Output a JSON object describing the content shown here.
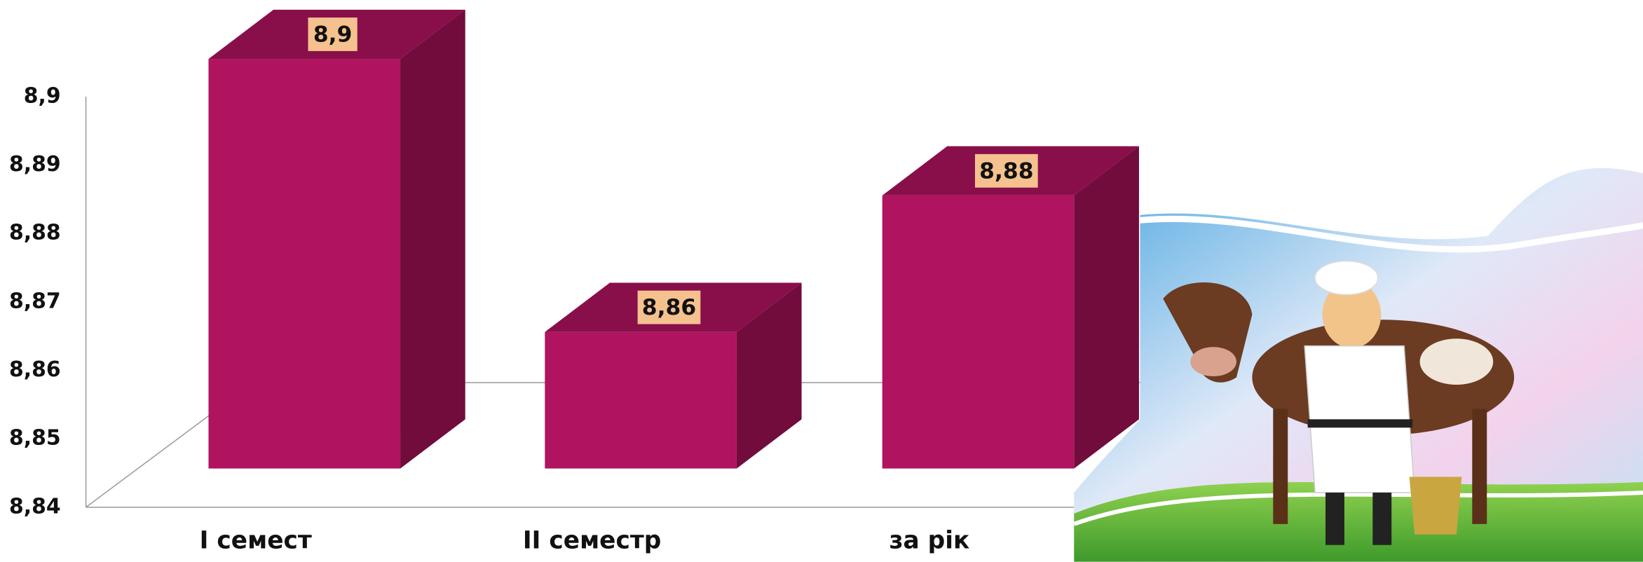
{
  "chart_data": {
    "type": "bar3d",
    "categories": [
      "І семест",
      "ІІ семестр",
      "за рік"
    ],
    "values": [
      8.9,
      8.86,
      8.88
    ],
    "value_labels": [
      "8,9",
      "8,86",
      "8,88"
    ],
    "color": "#b0135f",
    "ylim": [
      8.84,
      8.9
    ],
    "yticks": [
      {
        "value": 8.84,
        "label": "8,84"
      },
      {
        "value": 8.85,
        "label": "8,85"
      },
      {
        "value": 8.86,
        "label": "8,86"
      },
      {
        "value": 8.87,
        "label": "8,87"
      },
      {
        "value": 8.88,
        "label": "8,88"
      },
      {
        "value": 8.89,
        "label": "8,89"
      },
      {
        "value": 8.9,
        "label": "8,9"
      }
    ],
    "grid": false
  }
}
